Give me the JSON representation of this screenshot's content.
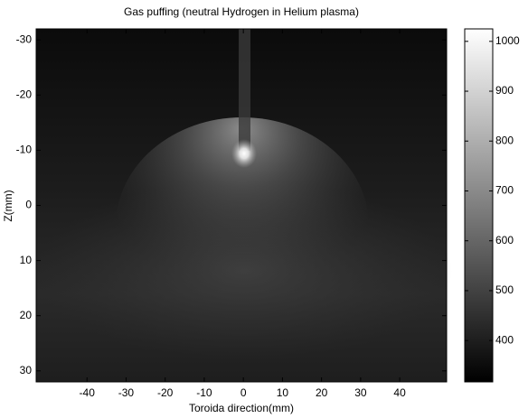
{
  "chart_data": {
    "type": "image",
    "title": "Gas puffing (neutral Hydrogen in Helium plasma)",
    "x_label": "Toroida direction(mm)",
    "y_label": "Z(mm)",
    "xlim": [
      -53,
      52
    ],
    "xticks": [
      -40,
      -30,
      -20,
      -10,
      0,
      10,
      20,
      30,
      40
    ],
    "ylim": [
      -32,
      32
    ],
    "yticks": [
      -30,
      -20,
      -10,
      0,
      10,
      20,
      30
    ],
    "y_direction": "reverse",
    "colormap": "gray",
    "clim": [
      317,
      1025
    ],
    "cticks": [
      400,
      500,
      600,
      700,
      800,
      900,
      1000
    ]
  }
}
